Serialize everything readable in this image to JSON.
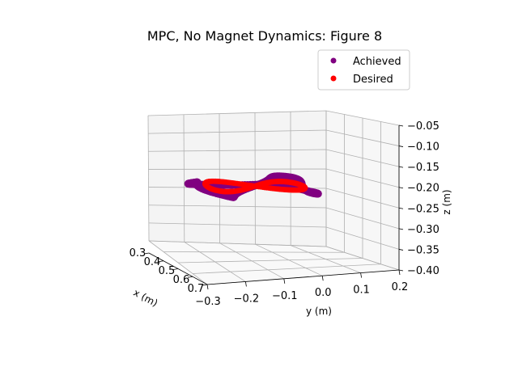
{
  "chart_data": {
    "type": "scatter",
    "projection": "3d",
    "title": "MPC, No Magnet Dynamics: Figure 8",
    "xlabel": "x (m)",
    "ylabel": "y (m)",
    "zlabel": "z (m)",
    "x_ticks": [
      "0.3",
      "0.4",
      "0.5",
      "0.6",
      "0.7"
    ],
    "y_ticks": [
      "−0.3",
      "−0.2",
      "−0.1",
      "0.0",
      "0.1",
      "0.2"
    ],
    "z_ticks": [
      "−0.05",
      "−0.10",
      "−0.15",
      "−0.20",
      "−0.25",
      "−0.30",
      "−0.35",
      "−0.40"
    ],
    "xlim": [
      0.3,
      0.7
    ],
    "ylim": [
      -0.3,
      0.2
    ],
    "zlim": [
      -0.4,
      -0.05
    ],
    "grid": true,
    "legend": {
      "position": "upper-right"
    },
    "series": [
      {
        "name": "Achieved",
        "color": "#800080",
        "shape": "figure-8",
        "center": [
          0.45,
          -0.08,
          -0.2
        ],
        "half_width_y": 0.16,
        "half_depth_x": 0.06,
        "z_wobble": 0.015
      },
      {
        "name": "Desired",
        "color": "#ff0000",
        "shape": "figure-8",
        "center": [
          0.45,
          -0.07,
          -0.2
        ],
        "half_width_y": 0.13,
        "half_depth_x": 0.05,
        "z_wobble": 0.0
      }
    ]
  }
}
